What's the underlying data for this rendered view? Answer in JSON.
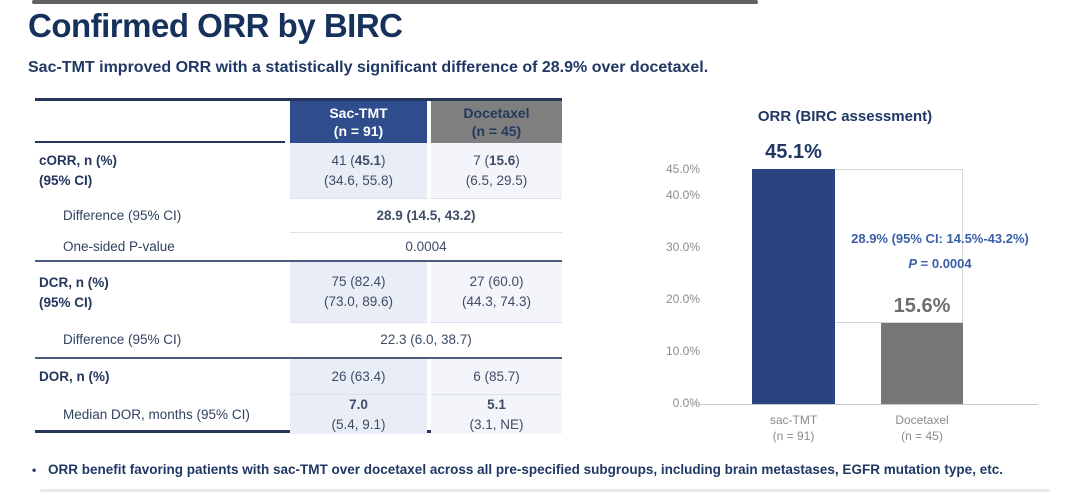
{
  "page": {
    "title": "Confirmed ORR by BIRC",
    "subtitle": "Sac-TMT improved ORR with a statistically significant difference of 28.9% over docetaxel.",
    "footer_bullet": "•",
    "footer_text": "ORR benefit favoring patients with sac-TMT over docetaxel across all pre-specified subgroups, including brain metastases, EGFR mutation type, etc."
  },
  "table": {
    "header": {
      "col1": {
        "line1": "Sac-TMT",
        "line2": "(n = 91)"
      },
      "col2": {
        "line1": "Docetaxel",
        "line2": "(n = 45)"
      }
    },
    "rows": {
      "corr": {
        "label1": "cORR, n (%)",
        "label2": "(95% CI)",
        "sac1_parts": [
          {
            "t": "41 ("
          },
          {
            "t": "45.1",
            "b": true
          },
          {
            "t": ")"
          }
        ],
        "sac2": "(34.6, 55.8)",
        "doc1_parts": [
          {
            "t": "7 ("
          },
          {
            "t": "15.6",
            "b": true
          },
          {
            "t": ")"
          }
        ],
        "doc2": "(6.5, 29.5)"
      },
      "corr_diff": {
        "label": "Difference (95% CI)",
        "value": "28.9 (14.5, 43.2)"
      },
      "pvalue": {
        "label": "One-sided P-value",
        "value": "0.0004"
      },
      "dcr": {
        "label1": "DCR, n (%)",
        "label2": "(95% CI)",
        "sac1": "75 (82.4)",
        "sac2": "(73.0, 89.6)",
        "doc1": "27 (60.0)",
        "doc2": "(44.3, 74.3)"
      },
      "dcr_diff": {
        "label": "Difference (95% CI)",
        "value": "22.3 (6.0, 38.7)"
      },
      "dor": {
        "label1": "DOR, n (%)",
        "sac1": "26 (63.4)",
        "doc1": "6 (85.7)"
      },
      "dor_median": {
        "label": "Median DOR, months (95% CI)",
        "sac_parts": [
          {
            "t": "7.0",
            "b": true
          },
          {
            "t": " (5.4, 9.1)"
          }
        ],
        "doc_parts": [
          {
            "t": "5.1",
            "b": true
          },
          {
            "t": " (3.1, NE)"
          }
        ]
      }
    }
  },
  "chart_data": {
    "type": "bar",
    "title": "ORR (BIRC assessment)",
    "categories": [
      "sac-TMT (n = 91)",
      "Docetaxel (n = 45)"
    ],
    "cat_lines": [
      [
        "sac-TMT",
        "(n = 91)"
      ],
      [
        "Docetaxel",
        "(n = 45)"
      ]
    ],
    "values": [
      45.1,
      15.6
    ],
    "value_labels": [
      "45.1%",
      "15.6%"
    ],
    "bar_colors": [
      "#2a4482",
      "#767676"
    ],
    "value_label_colors": [
      "#1f3864",
      "#6e6e6e"
    ],
    "ytick_labels": [
      "45.0%",
      "40.0%",
      "30.0%",
      "20.0%",
      "10.0%",
      "0.0%"
    ],
    "ytick_values": [
      45,
      40,
      30,
      20,
      10,
      0
    ],
    "ylim": [
      0,
      45
    ],
    "grid": false,
    "legend": "none",
    "annotation": {
      "line1": "28.9% (95% CI: 14.5%-43.2%)",
      "line2_parts": [
        {
          "t": "P",
          "b": true,
          "i": true
        },
        {
          "t": " = 0.0004",
          "b": true
        }
      ],
      "color": "#3a5ea8"
    },
    "bracket_color": "#d6d6d6",
    "axis_color": "#c9c9c9",
    "tick_color": "#8c8c8c"
  },
  "colors": {
    "accent_navy": "#1f3864",
    "header_blue": "#2f4d8c",
    "header_gray": "#7f7f7f",
    "shade_sac": "#e9edf6",
    "shade_doc": "#f3f5fa"
  }
}
